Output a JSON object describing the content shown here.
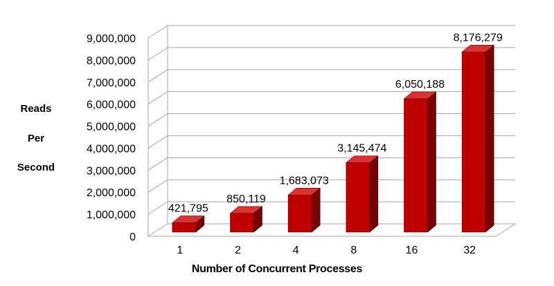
{
  "chart_data": {
    "type": "bar",
    "title": "",
    "categories": [
      "1",
      "2",
      "4",
      "8",
      "16",
      "32"
    ],
    "values": [
      421795,
      850119,
      1683073,
      3145474,
      6050188,
      8176279
    ],
    "data_labels": [
      "421,795",
      "850,119",
      "1,683,073",
      "3,145,474",
      "6,050,188",
      "8,176,279"
    ],
    "xlabel": "Number of Concurrent Processes",
    "ylabel_lines": [
      "Reads",
      "Per",
      "Second"
    ],
    "ylim": [
      0,
      9000000
    ],
    "yticks": [
      0,
      1000000,
      2000000,
      3000000,
      4000000,
      5000000,
      6000000,
      7000000,
      8000000,
      9000000
    ],
    "ytick_labels": [
      "0",
      "1,000,000",
      "2,000,000",
      "3,000,000",
      "4,000,000",
      "5,000,000",
      "6,000,000",
      "7,000,000",
      "8,000,000",
      "9,000,000"
    ],
    "grid": true,
    "style": "3d",
    "colors": {
      "bar_front": "#c00000",
      "bar_side": "#7a0000",
      "bar_top": "#e03030",
      "grid": "#a6a6a6"
    }
  }
}
